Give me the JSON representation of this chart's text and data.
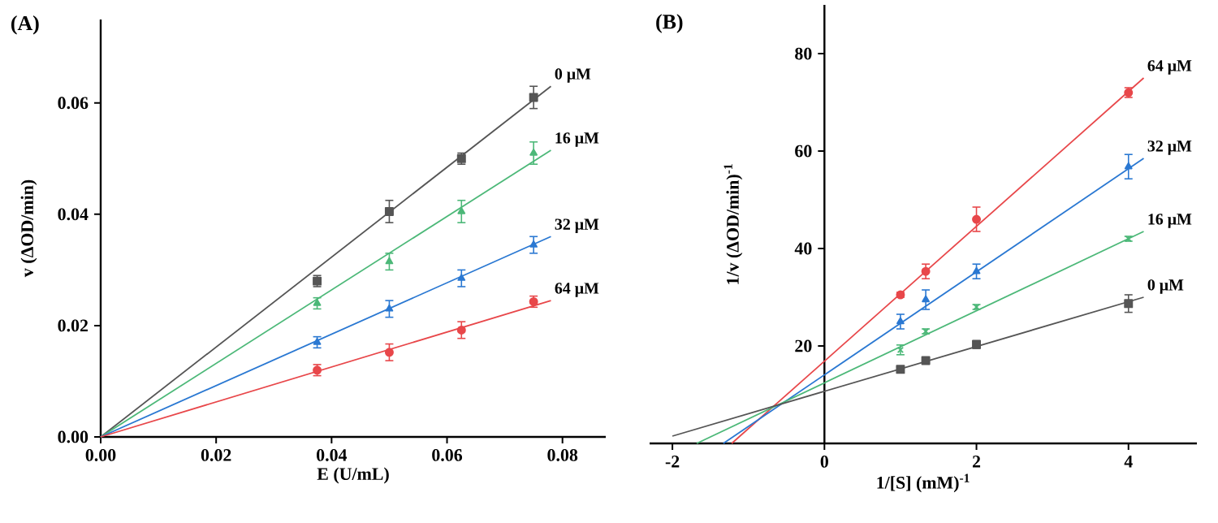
{
  "chart_data": [
    {
      "type": "scatter",
      "title": "(A)",
      "xlabel": "E (U/mL)",
      "ylabel": "v (ΔOD/min)",
      "xlim": [
        0,
        0.0875
      ],
      "ylim": [
        0,
        0.075
      ],
      "xticks": [
        {
          "value": 0,
          "label": "0.00"
        },
        0.02,
        0.04,
        0.06,
        0.08
      ],
      "yticks": [
        {
          "value": 0,
          "label": "0.00"
        },
        0.02,
        0.04,
        0.06
      ],
      "series": [
        {
          "type": "line",
          "name": "0 μM",
          "color": "#555555",
          "marker": "none",
          "x": [
            0,
            0.078
          ],
          "values": [
            0,
            0.063
          ]
        },
        {
          "type": "line",
          "name": "16 μM",
          "color": "#4cb878",
          "marker": "none",
          "x": [
            0,
            0.078
          ],
          "values": [
            0,
            0.0515
          ]
        },
        {
          "type": "line",
          "name": "32 μM",
          "color": "#2a78d2",
          "marker": "none",
          "x": [
            0,
            0.078
          ],
          "values": [
            0,
            0.036
          ]
        },
        {
          "type": "line",
          "name": "64 μM",
          "color": "#e8474a",
          "marker": "none",
          "x": [
            0,
            0.078
          ],
          "values": [
            0,
            0.0245
          ]
        },
        {
          "color": "#555555",
          "marker": "square",
          "x": [
            0.0375,
            0.05,
            0.0625,
            0.075
          ],
          "values": [
            0.028,
            0.0405,
            0.05,
            0.061
          ],
          "errors": [
            0.001,
            0.002,
            0.001,
            0.002
          ]
        },
        {
          "color": "#4cb878",
          "marker": "triangle",
          "x": [
            0.0375,
            0.05,
            0.0625,
            0.075
          ],
          "values": [
            0.024,
            0.0315,
            0.0405,
            0.051
          ],
          "errors": [
            0.001,
            0.0015,
            0.002,
            0.002
          ]
        },
        {
          "color": "#2a78d2",
          "marker": "triangle",
          "x": [
            0.0375,
            0.05,
            0.0625,
            0.075
          ],
          "values": [
            0.017,
            0.023,
            0.0285,
            0.0345
          ],
          "errors": [
            0.001,
            0.0015,
            0.0015,
            0.0015
          ]
        },
        {
          "color": "#e8474a",
          "marker": "circle",
          "x": [
            0.0375,
            0.05,
            0.0625,
            0.075
          ],
          "values": [
            0.012,
            0.0152,
            0.0192,
            0.0243
          ],
          "errors": [
            0.001,
            0.0015,
            0.0015,
            0.001
          ]
        }
      ]
    },
    {
      "type": "scatter",
      "title": "(B)",
      "xlabel": "1/[S] (mM)$^{-1}$",
      "ylabel": "1/v (ΔOD/min)$^{-1}$",
      "xlim": [
        -2.3,
        4.9
      ],
      "ylim": [
        0,
        90
      ],
      "xticks": [
        -2,
        0,
        2,
        4
      ],
      "yticks": [
        20,
        40,
        60,
        80
      ],
      "series": [
        {
          "type": "line",
          "name": "64 μM",
          "color": "#e8474a",
          "marker": "none",
          "x": [
            -1.22,
            4.2
          ],
          "values": [
            0,
            75
          ]
        },
        {
          "type": "line",
          "name": "32 μM",
          "color": "#2a78d2",
          "marker": "none",
          "x": [
            -1.33,
            4.2
          ],
          "values": [
            0,
            58.5
          ]
        },
        {
          "type": "line",
          "name": "16 μM",
          "color": "#4cb878",
          "marker": "none",
          "x": [
            -1.68,
            4.2
          ],
          "values": [
            0,
            43.5
          ]
        },
        {
          "type": "line",
          "name": "0 μM",
          "color": "#555555",
          "marker": "none",
          "x": [
            -2,
            4.2
          ],
          "values": [
            1.5,
            30
          ]
        },
        {
          "color": "#e8474a",
          "marker": "circle",
          "x": [
            1,
            1.333,
            2,
            4
          ],
          "values": [
            30.5,
            35.3,
            46,
            72
          ],
          "errors": [
            0.5,
            1.5,
            2.5,
            1
          ]
        },
        {
          "color": "#2a78d2",
          "marker": "triangle",
          "x": [
            1,
            1.333,
            2,
            4
          ],
          "values": [
            25,
            29.5,
            35.3,
            56.8
          ],
          "errors": [
            1.5,
            2,
            1.5,
            2.5
          ]
        },
        {
          "color": "#4cb878",
          "marker": "cross",
          "x": [
            1,
            1.333,
            2,
            4
          ],
          "values": [
            19.2,
            23,
            28,
            42
          ],
          "errors": [
            1,
            0.5,
            0.5,
            0.5
          ]
        },
        {
          "color": "#555555",
          "marker": "square",
          "x": [
            1,
            1.333,
            2,
            4
          ],
          "values": [
            15.2,
            17,
            20.3,
            28.7
          ],
          "errors": [
            0.5,
            0.5,
            0.8,
            1.8
          ]
        }
      ]
    }
  ]
}
